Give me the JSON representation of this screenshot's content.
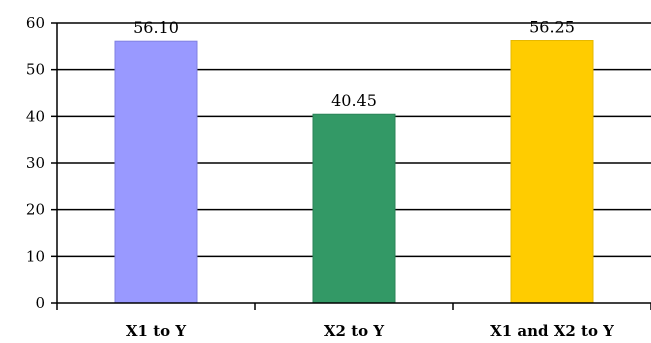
{
  "chart_data": {
    "type": "bar",
    "title": "",
    "xlabel": "",
    "ylabel": "",
    "categories": [
      "X1 to Y",
      "X2 to Y",
      "X1 and X2 to Y"
    ],
    "values": [
      56.1,
      40.45,
      56.25
    ],
    "data_labels": [
      "56.10",
      "40.45",
      "56.25"
    ],
    "bar_colors": [
      "#9999ff",
      "#339966",
      "#ffcc00"
    ],
    "bar_edge_colors": [
      "#8080e0",
      "#2b8458",
      "#e6b800"
    ],
    "ylim": [
      0,
      60
    ],
    "yticks": [
      0,
      10,
      20,
      30,
      40,
      50,
      60
    ],
    "ytick_labels": [
      "0",
      "10",
      "20",
      "30",
      "40",
      "50",
      "60"
    ],
    "grid": true,
    "legend": false
  }
}
